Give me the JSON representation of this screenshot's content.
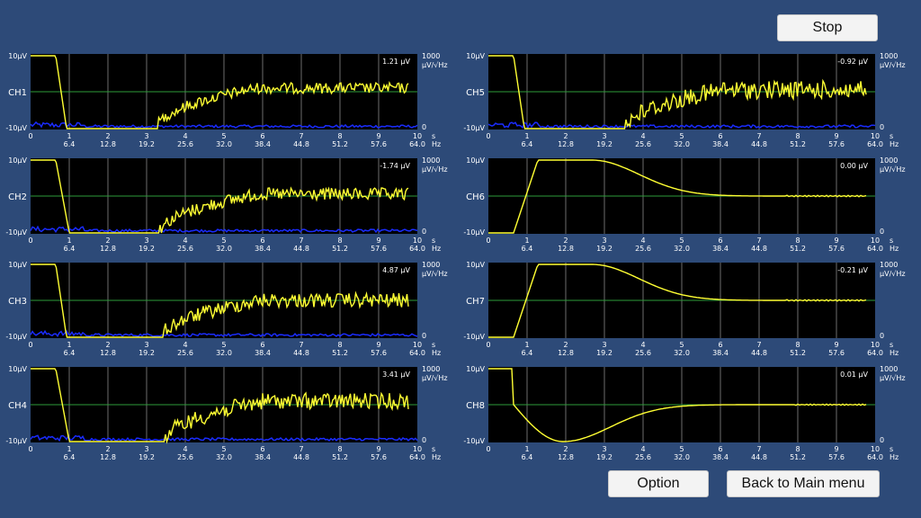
{
  "buttons": {
    "stop": "Stop",
    "option": "Option",
    "back": "Back to Main menu"
  },
  "colors": {
    "background": "#2d4a78",
    "plot_background": "#000000",
    "grid": "#8a8a8a",
    "center_line": "#2e9c3a",
    "signal": "#ffff33",
    "spectrum": "#1a2cff"
  },
  "axis": {
    "y_top_label": "10μV",
    "y_bottom_label": "-10μV",
    "right_top_label": "1000",
    "right_unit_label": "μV/√Hz",
    "right_bottom_label": "0",
    "time_ticks": [
      "0",
      "1",
      "2",
      "3",
      "4",
      "5",
      "6",
      "7",
      "8",
      "9",
      "10"
    ],
    "time_unit": "s",
    "freq_ticks": [
      "6.4",
      "12.8",
      "19.2",
      "25.6",
      "32.0",
      "38.4",
      "44.8",
      "51.2",
      "57.6",
      "64.0"
    ],
    "freq_unit": "Hz",
    "value_unit": "μV"
  },
  "channels": [
    {
      "name": "CH1",
      "value": "1.21",
      "kind": "noise"
    },
    {
      "name": "CH2",
      "value": "-1.74",
      "kind": "noise"
    },
    {
      "name": "CH3",
      "value": "4.87",
      "kind": "noise"
    },
    {
      "name": "CH4",
      "value": "3.41",
      "kind": "noise"
    },
    {
      "name": "CH5",
      "value": "-0.92",
      "kind": "noise"
    },
    {
      "name": "CH6",
      "value": "0.00",
      "kind": "bump"
    },
    {
      "name": "CH7",
      "value": "-0.21",
      "kind": "bump"
    },
    {
      "name": "CH8",
      "value": "0.01",
      "kind": "dip"
    }
  ]
}
